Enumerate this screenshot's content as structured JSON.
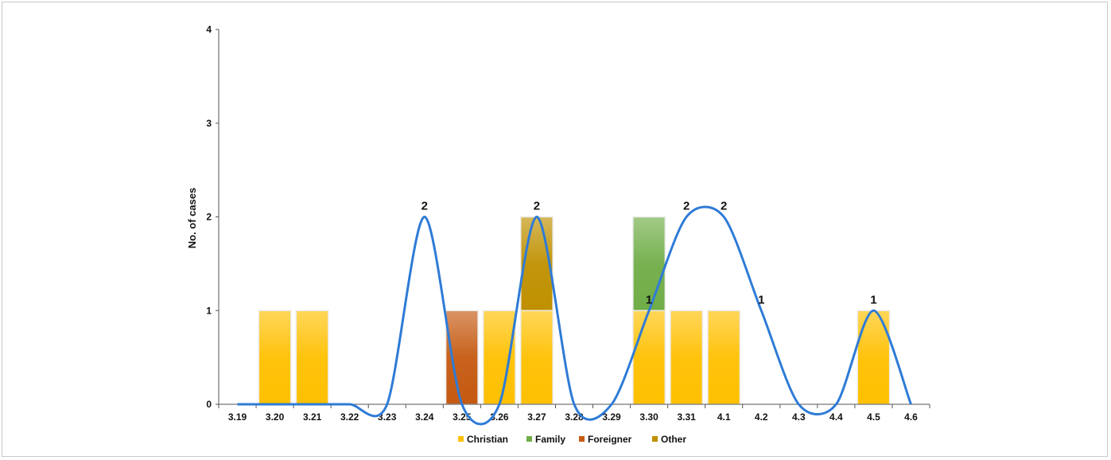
{
  "chart_data": {
    "type": "bar",
    "stacked": true,
    "ylabel": "No. of cases",
    "xlabel": "",
    "ylim": [
      0,
      4
    ],
    "yticks": [
      0,
      1,
      2,
      3,
      4
    ],
    "grid": false,
    "legend_position": "bottom",
    "categories": [
      "3.19",
      "3.20",
      "3.21",
      "3.22",
      "3.23",
      "3.24",
      "3.25",
      "3.26",
      "3.27",
      "3.28",
      "3.29",
      "3.30",
      "3.31",
      "4.1",
      "4.2",
      "4.3",
      "4.4",
      "4.5",
      "4.6"
    ],
    "series": [
      {
        "name": "Christian",
        "color": "#ffc000",
        "values": [
          0,
          1,
          1,
          0,
          0,
          0,
          0,
          1,
          1,
          0,
          0,
          1,
          1,
          1,
          0,
          0,
          0,
          1,
          0
        ]
      },
      {
        "name": "Family",
        "color": "#70ad47",
        "values": [
          0,
          0,
          0,
          0,
          0,
          0,
          0,
          0,
          0,
          0,
          0,
          1,
          0,
          0,
          0,
          0,
          0,
          0,
          0
        ]
      },
      {
        "name": "Foreigner",
        "color": "#c55a11",
        "values": [
          0,
          0,
          0,
          0,
          0,
          0,
          1,
          0,
          0,
          0,
          0,
          0,
          0,
          0,
          0,
          0,
          0,
          0,
          0
        ]
      },
      {
        "name": "Other",
        "color": "#bf9000",
        "values": [
          0,
          0,
          0,
          0,
          0,
          0,
          0,
          0,
          1,
          0,
          0,
          0,
          0,
          0,
          0,
          0,
          0,
          0,
          0
        ]
      }
    ],
    "trend_line": {
      "color": "#2e7bd6",
      "x": [
        "3.19",
        "3.20",
        "3.21",
        "3.22",
        "3.23",
        "3.24",
        "3.25",
        "3.26",
        "3.27",
        "3.28",
        "3.29",
        "3.30",
        "3.31",
        "4.1",
        "4.2",
        "4.3",
        "4.4",
        "4.5",
        "4.6"
      ],
      "y": [
        0,
        0,
        0,
        0,
        0,
        2,
        0,
        0,
        2,
        0,
        0,
        1,
        2,
        2,
        1,
        0,
        0,
        1,
        0
      ]
    },
    "data_labels": [
      {
        "category": "3.24",
        "text": "2"
      },
      {
        "category": "3.27",
        "text": "2"
      },
      {
        "category": "3.30",
        "text": "1"
      },
      {
        "category": "3.31",
        "text": "2"
      },
      {
        "category": "4.1",
        "text": "2"
      },
      {
        "category": "4.2",
        "text": "1"
      },
      {
        "category": "4.5",
        "text": "1"
      }
    ]
  }
}
